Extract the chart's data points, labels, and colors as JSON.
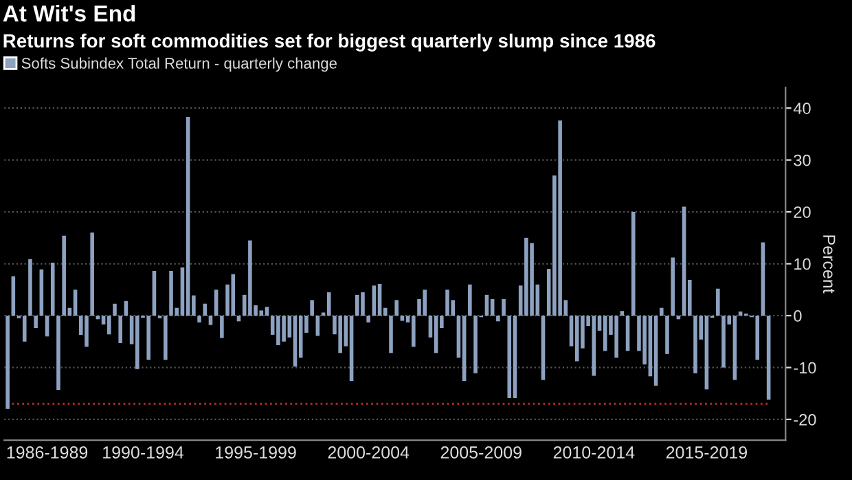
{
  "chart_data": {
    "type": "bar",
    "title": "At Wit's End",
    "subtitle": "Returns for soft commodities set for biggest quarterly slump since 1986",
    "ylabel": "Percent",
    "categories": [
      null,
      null,
      null,
      null,
      null,
      null,
      null,
      "1986-1989",
      null,
      null,
      null,
      null,
      null,
      null,
      null,
      null,
      null,
      null,
      null,
      null,
      null,
      null,
      null,
      null,
      "1990-1994",
      null,
      null,
      null,
      null,
      null,
      null,
      null,
      null,
      null,
      null,
      null,
      null,
      null,
      null,
      null,
      null,
      null,
      null,
      null,
      "1995-1999",
      null,
      null,
      null,
      null,
      null,
      null,
      null,
      null,
      null,
      null,
      null,
      null,
      null,
      null,
      null,
      null,
      null,
      null,
      null,
      "2000-2004",
      null,
      null,
      null,
      null,
      null,
      null,
      null,
      null,
      null,
      null,
      null,
      null,
      null,
      null,
      null,
      null,
      null,
      null,
      null,
      "2005-2009",
      null,
      null,
      null,
      null,
      null,
      null,
      null,
      null,
      null,
      null,
      null,
      null,
      null,
      null,
      null,
      null,
      null,
      null,
      null,
      "2010-2014",
      null,
      null,
      null,
      null,
      null,
      null,
      null,
      null,
      null,
      null,
      null,
      null,
      null,
      null,
      null,
      null,
      null,
      null,
      null,
      "2015-2019",
      null,
      null,
      null,
      null,
      null,
      null,
      null,
      null,
      null,
      null,
      null
    ],
    "series": [
      {
        "name": "Softs Subindex Total Return - quarterly change",
        "color": "#8da2c0",
        "values": [
          -18,
          7.6,
          -0.5,
          -5,
          10.9,
          -2.4,
          8.9,
          -4,
          10.2,
          -14.3,
          15.4,
          1.5,
          5,
          -3.7,
          -6,
          16,
          -0.7,
          -1.7,
          -3.6,
          2.3,
          -5.3,
          2.8,
          -5.5,
          -10.3,
          -0.4,
          -8.5,
          8.6,
          -0.5,
          -8.5,
          8.6,
          1.5,
          9.3,
          38.3,
          3.9,
          -1.3,
          2.3,
          -1.8,
          5,
          -4.3,
          6,
          8,
          -1.1,
          4,
          14.5,
          2,
          1,
          1.7,
          -3.7,
          -5.7,
          -5,
          -4.2,
          -9.8,
          -8.1,
          -3.3,
          3,
          -3.9,
          0.6,
          4.5,
          -3.6,
          -7.2,
          -5.9,
          -12.6,
          4,
          4.5,
          -1.3,
          5.8,
          6.1,
          1.5,
          -7.2,
          3,
          -1,
          -1.3,
          -6,
          3.2,
          5,
          -4.2,
          -7.2,
          -2.4,
          5,
          3,
          -8.1,
          -12.6,
          6,
          -11.1,
          -0.3,
          4,
          3.2,
          -1.1,
          3.2,
          -15.9,
          -15.9,
          5.8,
          15,
          14,
          6,
          -12.4,
          9,
          27,
          37.6,
          3,
          -5.9,
          -8.8,
          -6.3,
          -2,
          -11.6,
          -2.9,
          -6.8,
          -3.7,
          -8.1,
          0.9,
          -6.8,
          20,
          -6.8,
          -9.4,
          -11.7,
          -13.5,
          1.5,
          -7.4,
          11.2,
          -0.7,
          21,
          6.9,
          -11.1,
          -4.6,
          -14.2,
          -0.4,
          5.2,
          -10,
          -1.7,
          -12.4,
          0.8,
          0.4,
          -0.3,
          -8.5,
          14.1,
          -16.2
        ]
      }
    ],
    "ylim": [
      -24,
      44
    ],
    "yticks": [
      -20,
      -10,
      0,
      10,
      20,
      30,
      40
    ],
    "ref_lines": [
      {
        "axis": "y",
        "value": -17,
        "color": "#b02a2a",
        "line_style": "dotted"
      }
    ],
    "grid": "y",
    "legend": "top left"
  }
}
